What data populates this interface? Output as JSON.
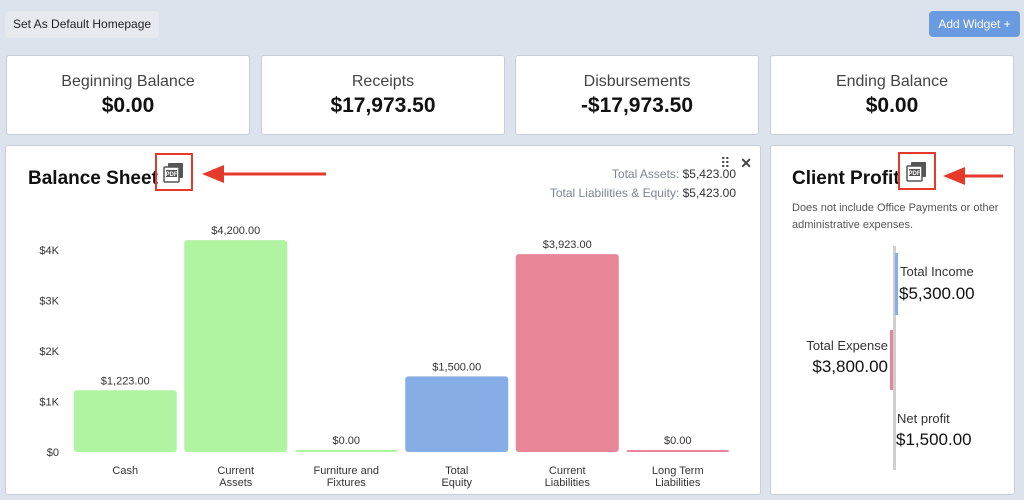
{
  "toolbar": {
    "default_homepage": "Set As Default Homepage",
    "add_widget": "Add Widget +"
  },
  "summary": [
    {
      "label": "Beginning Balance",
      "value": "$0.00"
    },
    {
      "label": "Receipts",
      "value": "$17,973.50"
    },
    {
      "label": "Disbursements",
      "value": "-$17,973.50"
    },
    {
      "label": "Ending Balance",
      "value": "$0.00"
    }
  ],
  "balance_sheet": {
    "title": "Balance Sheet",
    "total_assets_label": "Total Assets:",
    "total_assets_value": "$5,423.00",
    "total_le_label": "Total Liabilities & Equity:",
    "total_le_value": "$5,423.00",
    "pdf_icon": "pdf-icon"
  },
  "chart_data": {
    "type": "bar",
    "categories": [
      "Cash",
      "Current Assets",
      "Furniture and Fixtures",
      "Total Equity",
      "Current Liabilities",
      "Long Term Liabilities"
    ],
    "category_lines": [
      [
        "Cash"
      ],
      [
        "Current",
        "Assets"
      ],
      [
        "Furniture and",
        "Fixtures"
      ],
      [
        "Total",
        "Equity"
      ],
      [
        "Current",
        "Liabilities"
      ],
      [
        "Long Term",
        "Liabilities"
      ]
    ],
    "values": [
      1223,
      4200,
      0,
      1500,
      3923,
      0
    ],
    "value_labels": [
      "$1,223.00",
      "$4,200.00",
      "$0.00",
      "$1,500.00",
      "$3,923.00",
      "$0.00"
    ],
    "colors": [
      "#b0f3a0",
      "#b0f3a0",
      "#b0f3a0",
      "#86ade6",
      "#e88596",
      "#e88596"
    ],
    "yticks": [
      0,
      1000,
      2000,
      3000,
      4000
    ],
    "ytick_labels": [
      "$0",
      "$1K",
      "$2K",
      "$3K",
      "$4K"
    ],
    "ylim": [
      0,
      4400
    ],
    "title": "Balance Sheet",
    "xlabel": "",
    "ylabel": ""
  },
  "client_profit": {
    "title": "Client Profit",
    "note": "Does not include Office Payments or other administrative expenses.",
    "income_label": "Total Income",
    "income_value": "$5,300.00",
    "expense_label": "Total Expense",
    "expense_value": "$3,800.00",
    "net_label": "Net profit",
    "net_value": "$1,500.00",
    "colors": {
      "income": "#86ade6",
      "expense": "#e88596",
      "neutral": "#cfcfcf"
    }
  },
  "colors": {
    "accent": "#6a9ae0",
    "highlight": "#e53a2b"
  }
}
